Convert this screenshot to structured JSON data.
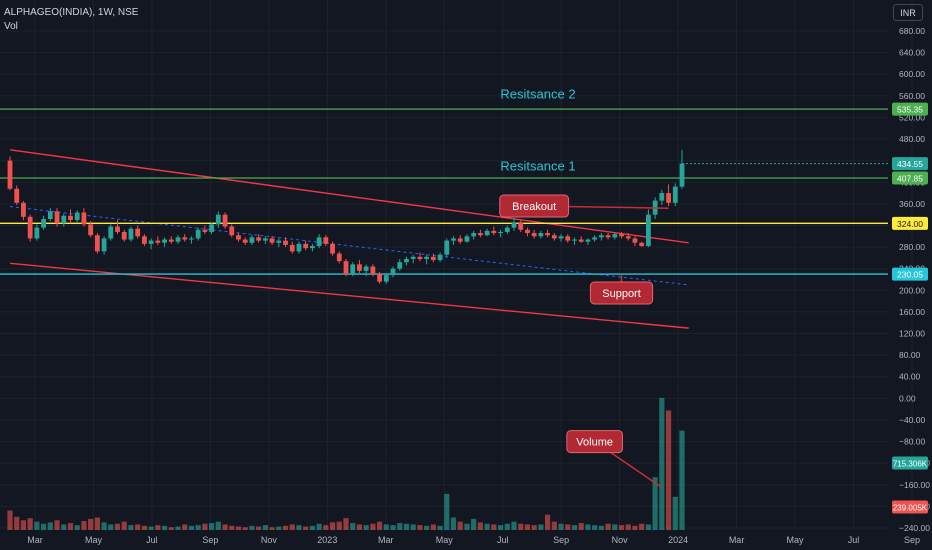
{
  "header": {
    "symbol": "ALPHAGEO(INDIA), 1W, NSE",
    "indicator": "Vol",
    "currency": "INR"
  },
  "colors": {
    "background": "#131722",
    "up": "#26a69a",
    "down": "#ef5350",
    "resistance_line": "#4caf50",
    "breakout_line": "#ffeb3b",
    "support_line": "#26c6da",
    "channel": "#f23645",
    "midline": "#2962ff",
    "callout": "#b22833",
    "zone_label": "#26c6da"
  },
  "chart_data": {
    "type": "candlestick",
    "title": "ALPHAGEO(INDIA), 1W, NSE",
    "y_axis": {
      "side": "right",
      "price_ticks": [
        680,
        640,
        600,
        560,
        520,
        480,
        440,
        400,
        360,
        320,
        280,
        240,
        200,
        160,
        120,
        80,
        40,
        0,
        -40,
        -80,
        -120,
        -160,
        -200,
        -240
      ],
      "tick_labels": [
        "680.00",
        "640.00",
        "600.00",
        "560.00",
        "520.00",
        "480.00",
        "440.00",
        "400.00",
        "360.00",
        "320.00",
        "280.00",
        "240.00",
        "200.00",
        "160.00",
        "120.00",
        "80.00",
        "40.00",
        "0.00",
        "−40.00",
        "−80.00",
        "−120.00",
        "−160.00",
        "−200.00",
        "−240.00"
      ]
    },
    "x_axis": {
      "tick_labels": [
        "Mar",
        "May",
        "Jul",
        "Sep",
        "Nov",
        "2023",
        "Mar",
        "May",
        "Jul",
        "Sep",
        "Nov",
        "2024",
        "Mar",
        "May",
        "Jul",
        "Sep"
      ],
      "tick_weeks": [
        0,
        8.7,
        17.4,
        26.1,
        34.8,
        43.5,
        52.2,
        60.9,
        69.6,
        78.3,
        87,
        95.7,
        104.4,
        113.1,
        121.8,
        130.5
      ],
      "first_week_date": "2022-02-28",
      "last_candle_week": 101
    },
    "levels": [
      {
        "label": "535.35",
        "price": 535.35,
        "color": "#4caf50"
      },
      {
        "label": "434.55",
        "price": 434.55,
        "color": "#26a69a"
      },
      {
        "label": "407.85",
        "price": 407.85,
        "color": "#4caf50"
      },
      {
        "label": "324.00",
        "price": 324.0,
        "color": "#ffeb3b"
      },
      {
        "label": "230.05",
        "price": 230.05,
        "color": "#26c6da"
      }
    ],
    "zone_labels": [
      {
        "text": "Resitsance 2",
        "price": 555
      },
      {
        "text": "Resitsance 1",
        "price": 422
      }
    ],
    "annotations": [
      {
        "text": "Breakout",
        "price": 356,
        "week": 78,
        "target_week": 98,
        "target_price": 352
      },
      {
        "text": "Support",
        "price": 195,
        "week": 91,
        "target_week": 91,
        "target_price": 228
      },
      {
        "text": "Volume",
        "price": -80,
        "week": 87,
        "target_week": 97,
        "target_price": -165
      }
    ],
    "channel": {
      "upper": [
        {
          "week": 0,
          "price": 460
        },
        {
          "week": 101,
          "price": 288
        }
      ],
      "lower": [
        {
          "week": 0,
          "price": 250
        },
        {
          "week": 101,
          "price": 130
        }
      ],
      "mid": [
        {
          "week": 0,
          "price": 355
        },
        {
          "week": 101,
          "price": 210
        }
      ]
    },
    "volume_labels": [
      {
        "label": "715.306K",
        "color": "#26a69a"
      },
      {
        "label": "239.005K",
        "color": "#ef5350"
      }
    ],
    "candles_ohlc": [
      [
        440,
        448,
        385,
        388
      ],
      [
        388,
        394,
        358,
        362
      ],
      [
        362,
        365,
        330,
        336
      ],
      [
        336,
        340,
        290,
        296
      ],
      [
        296,
        322,
        292,
        316
      ],
      [
        316,
        338,
        312,
        332
      ],
      [
        332,
        352,
        328,
        346
      ],
      [
        346,
        352,
        318,
        324
      ],
      [
        324,
        342,
        318,
        338
      ],
      [
        338,
        350,
        324,
        330
      ],
      [
        330,
        348,
        326,
        344
      ],
      [
        344,
        352,
        318,
        322
      ],
      [
        322,
        328,
        298,
        302
      ],
      [
        302,
        306,
        268,
        272
      ],
      [
        272,
        300,
        266,
        296
      ],
      [
        296,
        322,
        292,
        318
      ],
      [
        318,
        330,
        304,
        308
      ],
      [
        308,
        312,
        290,
        294
      ],
      [
        294,
        318,
        290,
        314
      ],
      [
        314,
        320,
        296,
        300
      ],
      [
        300,
        304,
        282,
        286
      ],
      [
        286,
        296,
        276,
        292
      ],
      [
        292,
        300,
        284,
        288
      ],
      [
        288,
        298,
        280,
        294
      ],
      [
        294,
        300,
        286,
        290
      ],
      [
        290,
        302,
        286,
        298
      ],
      [
        298,
        304,
        290,
        294
      ],
      [
        294,
        300,
        286,
        296
      ],
      [
        296,
        316,
        292,
        312
      ],
      [
        312,
        320,
        304,
        308
      ],
      [
        308,
        326,
        304,
        322
      ],
      [
        322,
        346,
        316,
        340
      ],
      [
        340,
        344,
        314,
        318
      ],
      [
        318,
        322,
        298,
        302
      ],
      [
        302,
        306,
        290,
        294
      ],
      [
        294,
        298,
        284,
        288
      ],
      [
        288,
        302,
        284,
        298
      ],
      [
        298,
        304,
        288,
        292
      ],
      [
        292,
        300,
        286,
        296
      ],
      [
        296,
        300,
        284,
        288
      ],
      [
        288,
        296,
        280,
        292
      ],
      [
        292,
        298,
        280,
        284
      ],
      [
        284,
        290,
        268,
        272
      ],
      [
        272,
        290,
        268,
        286
      ],
      [
        286,
        292,
        274,
        278
      ],
      [
        278,
        286,
        272,
        282
      ],
      [
        282,
        304,
        278,
        298
      ],
      [
        298,
        302,
        282,
        286
      ],
      [
        286,
        290,
        264,
        268
      ],
      [
        268,
        272,
        250,
        254
      ],
      [
        254,
        258,
        226,
        230
      ],
      [
        230,
        252,
        226,
        248
      ],
      [
        248,
        256,
        232,
        236
      ],
      [
        236,
        248,
        226,
        244
      ],
      [
        244,
        248,
        226,
        230
      ],
      [
        230,
        234,
        212,
        216
      ],
      [
        216,
        232,
        212,
        228
      ],
      [
        228,
        244,
        224,
        240
      ],
      [
        240,
        258,
        236,
        252
      ],
      [
        252,
        262,
        246,
        258
      ],
      [
        258,
        266,
        250,
        262
      ],
      [
        262,
        270,
        254,
        258
      ],
      [
        258,
        266,
        248,
        262
      ],
      [
        262,
        268,
        252,
        256
      ],
      [
        256,
        270,
        252,
        266
      ],
      [
        266,
        296,
        262,
        292
      ],
      [
        292,
        300,
        284,
        296
      ],
      [
        296,
        302,
        286,
        290
      ],
      [
        290,
        304,
        288,
        300
      ],
      [
        300,
        310,
        294,
        306
      ],
      [
        306,
        312,
        298,
        302
      ],
      [
        302,
        314,
        300,
        310
      ],
      [
        310,
        318,
        302,
        306
      ],
      [
        306,
        312,
        298,
        308
      ],
      [
        308,
        320,
        304,
        316
      ],
      [
        316,
        334,
        310,
        326
      ],
      [
        326,
        330,
        308,
        312
      ],
      [
        312,
        316,
        300,
        306
      ],
      [
        306,
        312,
        296,
        300
      ],
      [
        300,
        310,
        296,
        306
      ],
      [
        306,
        312,
        298,
        302
      ],
      [
        302,
        306,
        292,
        296
      ],
      [
        296,
        304,
        290,
        300
      ],
      [
        300,
        304,
        288,
        292
      ],
      [
        292,
        298,
        284,
        294
      ],
      [
        294,
        300,
        288,
        290
      ],
      [
        290,
        296,
        284,
        294
      ],
      [
        294,
        302,
        290,
        298
      ],
      [
        298,
        306,
        292,
        302
      ],
      [
        302,
        306,
        294,
        298
      ],
      [
        298,
        308,
        294,
        304
      ],
      [
        304,
        308,
        296,
        300
      ],
      [
        300,
        306,
        292,
        296
      ],
      [
        296,
        300,
        282,
        288
      ],
      [
        288,
        290,
        280,
        282
      ],
      [
        282,
        350,
        280,
        340
      ],
      [
        340,
        372,
        332,
        366
      ],
      [
        366,
        386,
        358,
        380
      ],
      [
        380,
        396,
        356,
        362
      ],
      [
        362,
        398,
        356,
        392
      ],
      [
        392,
        460,
        388,
        434.55
      ]
    ],
    "volume_k": [
      140,
      95,
      70,
      85,
      60,
      45,
      55,
      70,
      40,
      50,
      35,
      65,
      80,
      90,
      55,
      40,
      45,
      60,
      35,
      40,
      30,
      25,
      35,
      30,
      20,
      25,
      40,
      30,
      35,
      45,
      50,
      60,
      40,
      30,
      25,
      20,
      30,
      25,
      35,
      20,
      25,
      30,
      40,
      35,
      25,
      30,
      45,
      35,
      55,
      60,
      85,
      50,
      40,
      35,
      45,
      60,
      40,
      35,
      50,
      45,
      40,
      35,
      30,
      40,
      30,
      260,
      90,
      60,
      45,
      80,
      55,
      45,
      40,
      35,
      45,
      60,
      45,
      40,
      35,
      40,
      110,
      60,
      45,
      40,
      35,
      50,
      40,
      35,
      30,
      45,
      40,
      35,
      40,
      30,
      45,
      40,
      380,
      950,
      860,
      239.005,
      715.306
    ]
  }
}
